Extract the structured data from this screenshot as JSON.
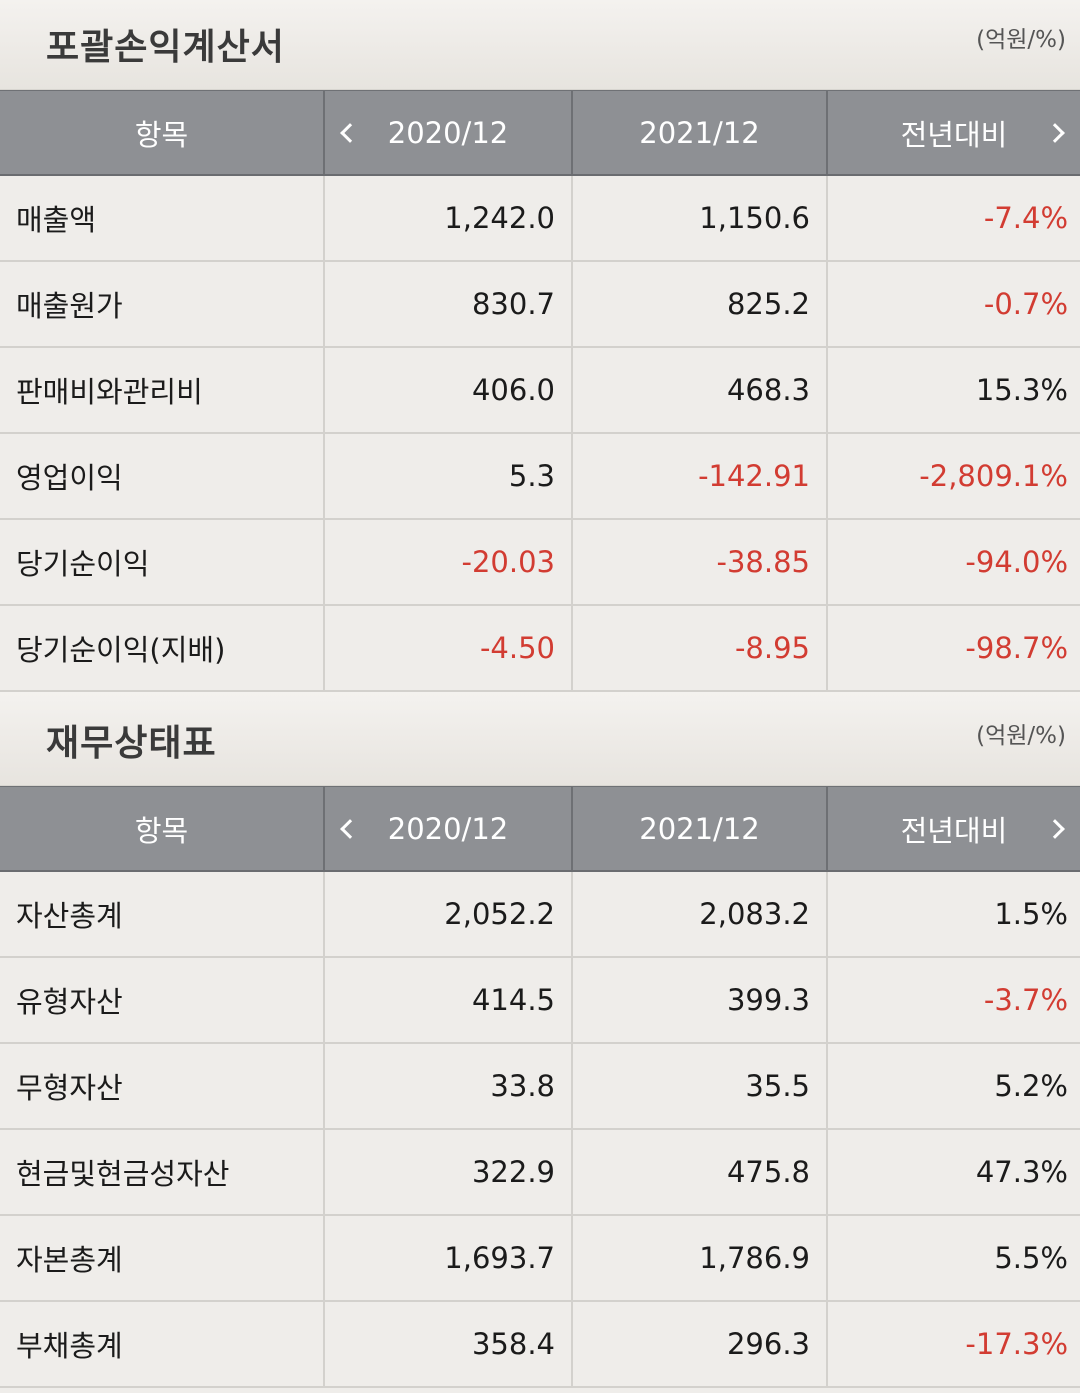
{
  "income_statement": {
    "title": "포괄손익계산서",
    "unit": "(억원/%)",
    "headers": {
      "item": "항목",
      "col1": "2020/12",
      "col2": "2021/12",
      "col3": "전년대비"
    },
    "rows": [
      {
        "label": "매출액",
        "v2020": "1,242.0",
        "v2021": "1,150.6",
        "yoy": "-7.4%"
      },
      {
        "label": "매출원가",
        "v2020": "830.7",
        "v2021": "825.2",
        "yoy": "-0.7%"
      },
      {
        "label": "판매비와관리비",
        "v2020": "406.0",
        "v2021": "468.3",
        "yoy": "15.3%"
      },
      {
        "label": "영업이익",
        "v2020": "5.3",
        "v2021": "-142.91",
        "yoy": "-2,809.1%"
      },
      {
        "label": "당기순이익",
        "v2020": "-20.03",
        "v2021": "-38.85",
        "yoy": "-94.0%"
      },
      {
        "label": "당기순이익(지배)",
        "v2020": "-4.50",
        "v2021": "-8.95",
        "yoy": "-98.7%"
      }
    ]
  },
  "balance_sheet": {
    "title": "재무상태표",
    "unit": "(억원/%)",
    "headers": {
      "item": "항목",
      "col1": "2020/12",
      "col2": "2021/12",
      "col3": "전년대비"
    },
    "rows": [
      {
        "label": "자산총계",
        "v2020": "2,052.2",
        "v2021": "2,083.2",
        "yoy": "1.5%"
      },
      {
        "label": "유형자산",
        "v2020": "414.5",
        "v2021": "399.3",
        "yoy": "-3.7%"
      },
      {
        "label": "무형자산",
        "v2020": "33.8",
        "v2021": "35.5",
        "yoy": "5.2%"
      },
      {
        "label": "현금및현금성자산",
        "v2020": "322.9",
        "v2021": "475.8",
        "yoy": "47.3%"
      },
      {
        "label": "자본총계",
        "v2020": "1,693.7",
        "v2021": "1,786.9",
        "yoy": "5.5%"
      },
      {
        "label": "부채총계",
        "v2020": "358.4",
        "v2021": "296.3",
        "yoy": "-17.3%"
      }
    ]
  },
  "colors": {
    "negative": "#d23c32",
    "header_bg": "#8e9094",
    "row_bg": "#efedea"
  },
  "icons": {
    "prev": "chevron-left-icon",
    "next": "chevron-right-icon"
  }
}
